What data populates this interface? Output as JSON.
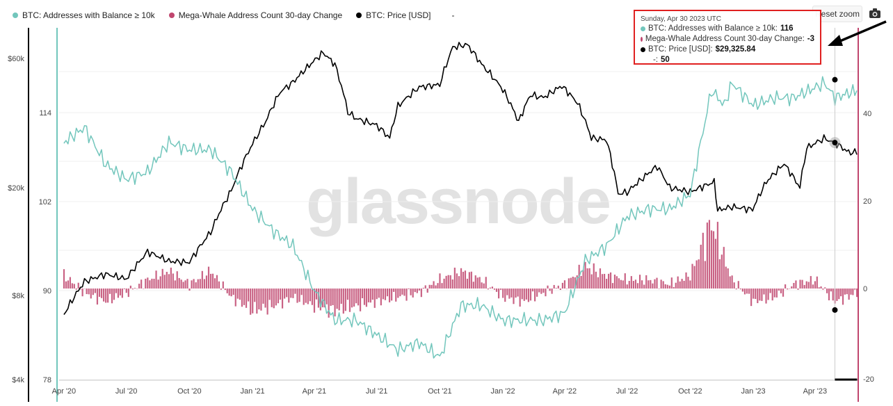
{
  "legend": [
    {
      "label": "BTC: Addresses with Balance ≥ 10k",
      "color": "#72c6bc"
    },
    {
      "label": "Mega-Whale Address Count 30-day Change",
      "color": "#c0466e"
    },
    {
      "label": "BTC: Price [USD]",
      "color": "#000000"
    },
    {
      "label": "-",
      "color": ""
    }
  ],
  "toolbar": {
    "reset_zoom": "Reset zoom",
    "camera_icon": "camera-icon"
  },
  "watermark": "glassnode",
  "tooltip": {
    "date": "Sunday, Apr 30 2023 UTC",
    "rows": [
      {
        "label": "BTC: Addresses with Balance ≥ 10k:",
        "value": "116",
        "color": "#72c6bc"
      },
      {
        "label": "Mega-Whale Address Count 30-day Change:",
        "value": "-3",
        "color": "#c0466e"
      },
      {
        "label": "BTC: Price [USD]:",
        "value": "$29,325.84",
        "color": "#000000"
      }
    ],
    "extra": {
      "label": "-:",
      "value": "50"
    }
  },
  "chart_data": {
    "type": "line",
    "x_ticks": [
      "Apr '20",
      "Jul '20",
      "Oct '20",
      "Jan '21",
      "Apr '21",
      "Jul '21",
      "Oct '21",
      "Jan '22",
      "Apr '22",
      "Jul '22",
      "Oct '22",
      "Jan '23",
      "Apr '23"
    ],
    "price_axis_ticks": [
      "$60k",
      "$20k",
      "$8k",
      "$4k"
    ],
    "count_axis_ticks": [
      "114",
      "102",
      "90",
      "78"
    ],
    "change_axis_ticks": [
      "40",
      "20",
      "0",
      "-20"
    ],
    "price_scale": "log",
    "series": [
      {
        "name": "BTC: Price [USD]",
        "color": "#000000",
        "axis": "price",
        "points": [
          [
            "2020-04-01",
            6800
          ],
          [
            "2020-05-01",
            9000
          ],
          [
            "2020-06-01",
            9600
          ],
          [
            "2020-07-01",
            9200
          ],
          [
            "2020-08-01",
            11600
          ],
          [
            "2020-09-01",
            10700
          ],
          [
            "2020-10-01",
            10600
          ],
          [
            "2020-11-01",
            13700
          ],
          [
            "2020-12-01",
            19500
          ],
          [
            "2021-01-01",
            29000
          ],
          [
            "2021-01-20",
            35000
          ],
          [
            "2021-02-10",
            45000
          ],
          [
            "2021-03-01",
            49000
          ],
          [
            "2021-04-14",
            63000
          ],
          [
            "2021-05-01",
            57000
          ],
          [
            "2021-05-20",
            38000
          ],
          [
            "2021-06-01",
            36000
          ],
          [
            "2021-07-01",
            34000
          ],
          [
            "2021-07-20",
            30500
          ],
          [
            "2021-08-01",
            40000
          ],
          [
            "2021-09-01",
            47000
          ],
          [
            "2021-10-01",
            48000
          ],
          [
            "2021-10-20",
            66000
          ],
          [
            "2021-11-10",
            67500
          ],
          [
            "2021-12-01",
            57000
          ],
          [
            "2022-01-01",
            46000
          ],
          [
            "2022-01-24",
            35000
          ],
          [
            "2022-02-10",
            44000
          ],
          [
            "2022-03-01",
            43000
          ],
          [
            "2022-03-28",
            47500
          ],
          [
            "2022-04-20",
            41000
          ],
          [
            "2022-05-10",
            30500
          ],
          [
            "2022-06-01",
            30000
          ],
          [
            "2022-06-18",
            19000
          ],
          [
            "2022-07-01",
            19200
          ],
          [
            "2022-08-14",
            24000
          ],
          [
            "2022-09-01",
            20000
          ],
          [
            "2022-10-01",
            19300
          ],
          [
            "2022-11-05",
            21000
          ],
          [
            "2022-11-10",
            16500
          ],
          [
            "2022-12-01",
            17000
          ],
          [
            "2022-12-31",
            16600
          ],
          [
            "2023-01-20",
            21000
          ],
          [
            "2023-02-15",
            24500
          ],
          [
            "2023-03-10",
            20000
          ],
          [
            "2023-03-20",
            28000
          ],
          [
            "2023-04-14",
            30400
          ],
          [
            "2023-04-30",
            29325.84
          ],
          [
            "2023-05-20",
            27000
          ],
          [
            "2023-06-01",
            27000
          ]
        ]
      },
      {
        "name": "BTC: Addresses with Balance ≥ 10k",
        "color": "#72c6bc",
        "axis": "count",
        "points": [
          [
            "2020-04-01",
            110
          ],
          [
            "2020-05-01",
            112
          ],
          [
            "2020-06-01",
            107
          ],
          [
            "2020-07-01",
            105
          ],
          [
            "2020-08-01",
            106
          ],
          [
            "2020-09-01",
            110
          ],
          [
            "2020-10-01",
            109
          ],
          [
            "2020-11-01",
            109
          ],
          [
            "2020-12-01",
            106
          ],
          [
            "2021-01-01",
            101
          ],
          [
            "2021-02-01",
            98
          ],
          [
            "2021-03-01",
            96
          ],
          [
            "2021-04-01",
            90
          ],
          [
            "2021-05-01",
            86
          ],
          [
            "2021-06-01",
            86
          ],
          [
            "2021-07-01",
            84
          ],
          [
            "2021-08-01",
            82
          ],
          [
            "2021-09-01",
            83
          ],
          [
            "2021-10-01",
            81
          ],
          [
            "2021-11-01",
            88
          ],
          [
            "2021-12-01",
            88
          ],
          [
            "2022-01-01",
            86
          ],
          [
            "2022-02-01",
            86
          ],
          [
            "2022-03-01",
            86
          ],
          [
            "2022-04-01",
            87
          ],
          [
            "2022-05-01",
            94
          ],
          [
            "2022-06-01",
            96
          ],
          [
            "2022-07-01",
            100
          ],
          [
            "2022-08-01",
            101
          ],
          [
            "2022-09-01",
            101
          ],
          [
            "2022-10-01",
            103
          ],
          [
            "2022-11-01",
            117
          ],
          [
            "2022-11-20",
            115
          ],
          [
            "2022-12-01",
            118
          ],
          [
            "2023-01-01",
            115
          ],
          [
            "2023-02-01",
            116
          ],
          [
            "2023-03-01",
            116
          ],
          [
            "2023-04-15",
            118
          ],
          [
            "2023-04-30",
            116
          ],
          [
            "2023-06-01",
            117
          ]
        ]
      },
      {
        "name": "Mega-Whale Address Count 30-day Change",
        "color": "#c0466e",
        "axis": "change",
        "style": "bar",
        "points": [
          [
            "2020-04-01",
            3
          ],
          [
            "2020-05-01",
            -1
          ],
          [
            "2020-06-01",
            -3
          ],
          [
            "2020-07-01",
            -1
          ],
          [
            "2020-08-01",
            2
          ],
          [
            "2020-09-01",
            4
          ],
          [
            "2020-10-01",
            1
          ],
          [
            "2020-11-01",
            4
          ],
          [
            "2020-12-01",
            -2
          ],
          [
            "2021-01-01",
            -5
          ],
          [
            "2021-02-01",
            -4
          ],
          [
            "2021-03-01",
            -2
          ],
          [
            "2021-04-01",
            -4
          ],
          [
            "2021-05-01",
            -5
          ],
          [
            "2021-06-01",
            -4
          ],
          [
            "2021-07-01",
            -3
          ],
          [
            "2021-08-01",
            -2
          ],
          [
            "2021-09-01",
            -1
          ],
          [
            "2021-10-01",
            2
          ],
          [
            "2021-11-01",
            4
          ],
          [
            "2021-12-01",
            2
          ],
          [
            "2022-01-01",
            -2
          ],
          [
            "2022-02-01",
            -3
          ],
          [
            "2022-03-01",
            -1
          ],
          [
            "2022-04-01",
            1
          ],
          [
            "2022-05-01",
            5
          ],
          [
            "2022-06-01",
            3
          ],
          [
            "2022-07-01",
            2
          ],
          [
            "2022-08-01",
            2
          ],
          [
            "2022-09-01",
            1
          ],
          [
            "2022-10-01",
            3
          ],
          [
            "2022-11-01",
            15
          ],
          [
            "2022-12-01",
            2
          ],
          [
            "2023-01-01",
            -3
          ],
          [
            "2023-02-01",
            -2
          ],
          [
            "2023-03-01",
            1
          ],
          [
            "2023-04-01",
            2
          ],
          [
            "2023-04-30",
            -3
          ],
          [
            "2023-06-01",
            -1
          ]
        ]
      }
    ],
    "hover_date": "2023-04-30"
  }
}
